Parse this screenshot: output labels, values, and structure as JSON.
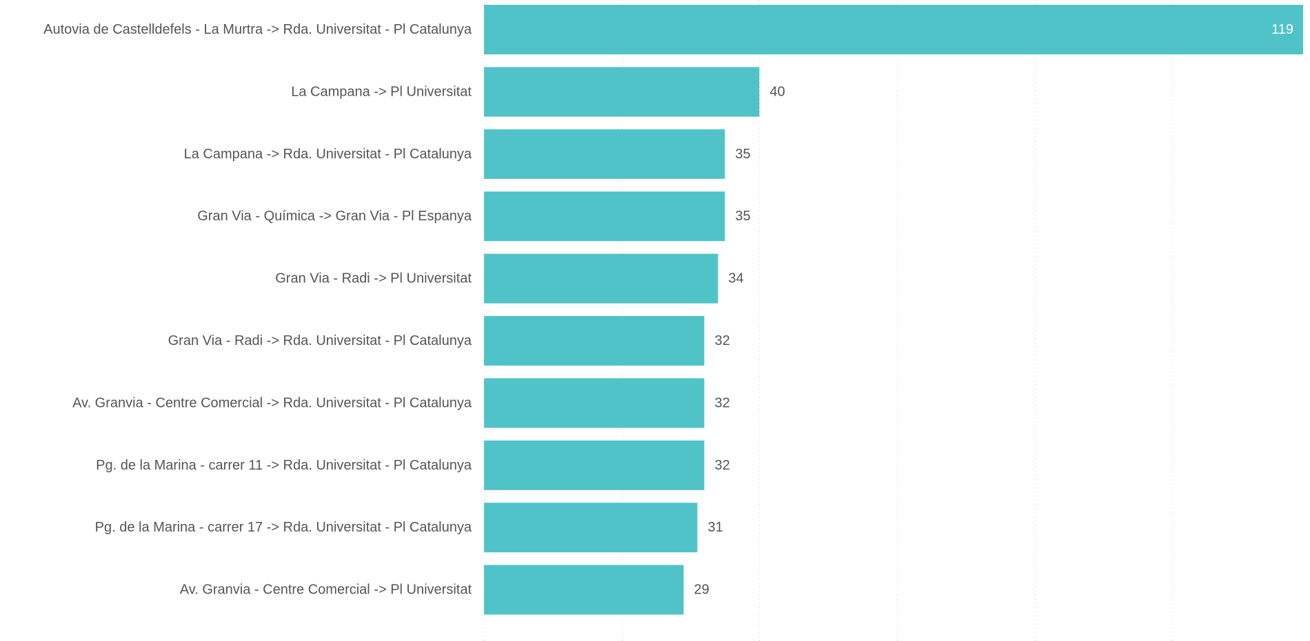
{
  "chart_data": {
    "type": "bar",
    "orientation": "horizontal",
    "categories": [
      "Autovia de Castelldefels - La Murtra -> Rda. Universitat - Pl Catalunya",
      "La Campana -> Pl Universitat",
      "La Campana -> Rda. Universitat - Pl Catalunya",
      "Gran Via - Química -> Gran Via - Pl Espanya",
      "Gran Via - Radi -> Pl Universitat",
      "Gran Via - Radi -> Rda. Universitat - Pl Catalunya",
      "Av. Granvia - Centre Comercial -> Rda. Universitat - Pl Catalunya",
      "Pg. de la Marina - carrer 11 -> Rda. Universitat - Pl Catalunya",
      "Pg. de la Marina - carrer 17 -> Rda. Universitat - Pl Catalunya",
      "Av. Granvia - Centre Comercial -> Pl Universitat"
    ],
    "values": [
      119,
      40,
      35,
      35,
      34,
      32,
      32,
      32,
      31,
      29
    ],
    "value_labels": [
      "119",
      "40",
      "35",
      "35",
      "34",
      "32",
      "32",
      "32",
      "31",
      "29"
    ],
    "xlim": [
      0,
      120
    ],
    "gridlines_at": [
      0,
      20,
      40,
      60,
      80,
      100,
      120
    ],
    "grid": true,
    "grid_style": "dotted vertical",
    "legend": "none",
    "title": "",
    "xlabel": "",
    "ylabel": "",
    "colors": {
      "bar": "#4fc3c8",
      "label_text": "#555555",
      "inside_label_text": "#ffffff",
      "grid": "#c8c8c8"
    }
  }
}
